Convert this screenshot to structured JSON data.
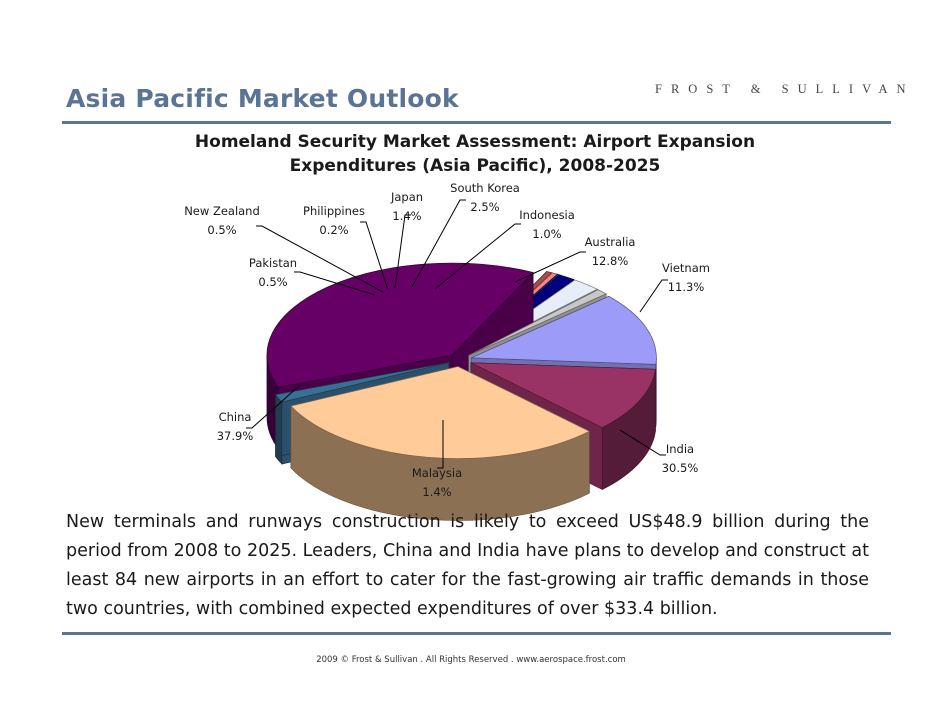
{
  "header": {
    "title": "Asia Pacific Market Outlook",
    "brand": "FROST & SULLIVAN"
  },
  "colors": {
    "accent": "#5a7494"
  },
  "chart_data": {
    "type": "pie",
    "title_line1": "Homeland Security Market Assessment: Airport Expansion",
    "title_line2": "Expenditures (Asia Pacific),  2008-2025",
    "three_d": true,
    "slices": [
      {
        "name": "Australia",
        "value": 12.8,
        "pct": "12.8%",
        "color": "#9c9cf8"
      },
      {
        "name": "Vietnam",
        "value": 11.3,
        "pct": "11.3%",
        "color": "#993366"
      },
      {
        "name": "India",
        "value": 30.5,
        "pct": "30.5%",
        "color": "#ffcc99"
      },
      {
        "name": "Malaysia",
        "value": 1.4,
        "pct": "1.4%",
        "color": "#3a6f94"
      },
      {
        "name": "China",
        "value": 37.9,
        "pct": "37.9%",
        "color": "#660066"
      },
      {
        "name": "Pakistan",
        "value": 0.5,
        "pct": "0.5%",
        "color": "#a05050"
      },
      {
        "name": "New Zealand",
        "value": 0.5,
        "pct": "0.5%",
        "color": "#ff8080"
      },
      {
        "name": "Philippines",
        "value": 0.2,
        "pct": "0.2%",
        "color": "#003399"
      },
      {
        "name": "Japan",
        "value": 1.4,
        "pct": "1.4%",
        "color": "#000080"
      },
      {
        "name": "South Korea",
        "value": 2.5,
        "pct": "2.5%",
        "color": "#e8eef8"
      },
      {
        "name": "Indonesia",
        "value": 1.0,
        "pct": "1.0%",
        "color": "#c8c8c8"
      }
    ]
  },
  "body": {
    "paragraph": "New terminals and runways construction is likely to exceed US$48.9 billion during the period from 2008 to 2025. Leaders, China and India have plans to develop and construct at least 84 new airports in an effort to cater for the fast-growing air traffic demands in those two countries, with combined expected expenditures of over $33.4 billion."
  },
  "footer": {
    "text": "2009 © Frost & Sullivan . All Rights Reserved . www.aerospace.frost.com"
  }
}
